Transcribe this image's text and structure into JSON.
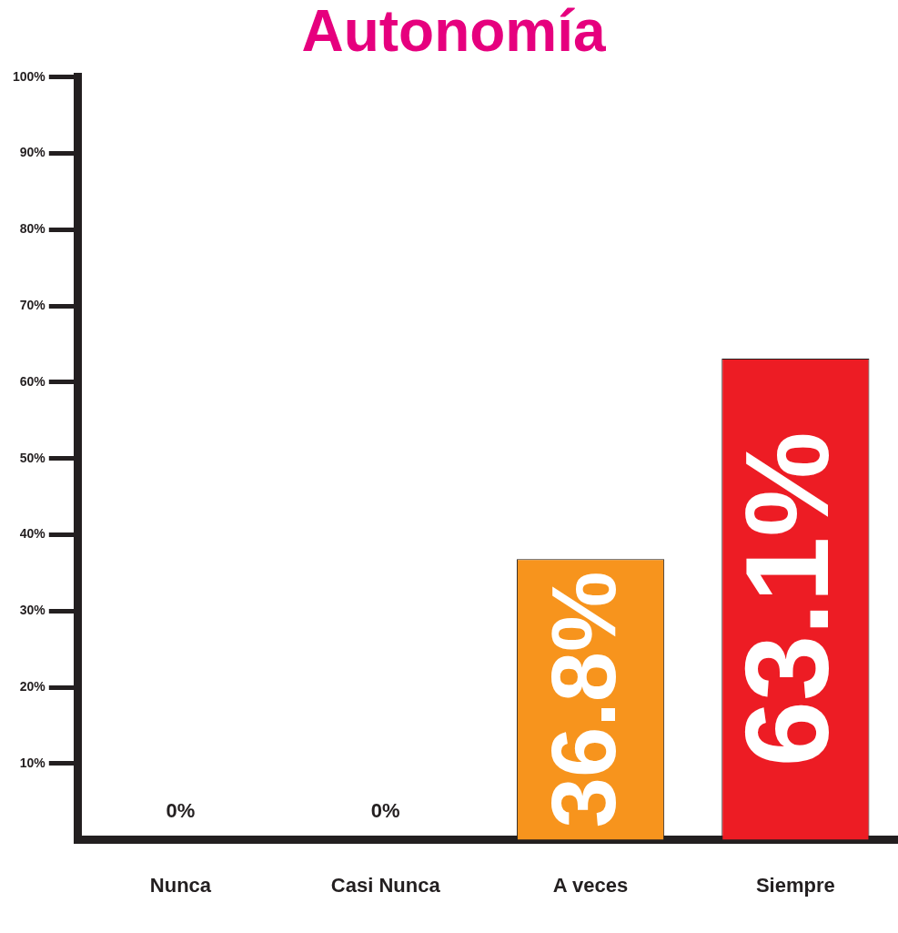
{
  "chart_data": {
    "type": "bar",
    "title": "Autonomía",
    "categories": [
      "Nunca",
      "Casi Nunca",
      "A veces",
      "Siempre"
    ],
    "values": [
      0,
      0,
      36.8,
      63.1
    ],
    "colors": [
      "#f7941d",
      "#f7941d",
      "#f7941d",
      "#ed1c24"
    ],
    "value_labels": [
      "0%",
      "0%",
      "36.8%",
      "63.1%"
    ],
    "ylim": [
      0,
      100
    ],
    "yticks": [
      {
        "value": 10,
        "label": "10%"
      },
      {
        "value": 20,
        "label": "20%"
      },
      {
        "value": 30,
        "label": "30%"
      },
      {
        "value": 40,
        "label": "40%"
      },
      {
        "value": 50,
        "label": "50%"
      },
      {
        "value": 60,
        "label": "60%"
      },
      {
        "value": 70,
        "label": "70%"
      },
      {
        "value": 80,
        "label": "80%"
      },
      {
        "value": 90,
        "label": "90%"
      },
      {
        "value": 100,
        "label": "100%"
      }
    ],
    "grid": false,
    "legend": false
  }
}
